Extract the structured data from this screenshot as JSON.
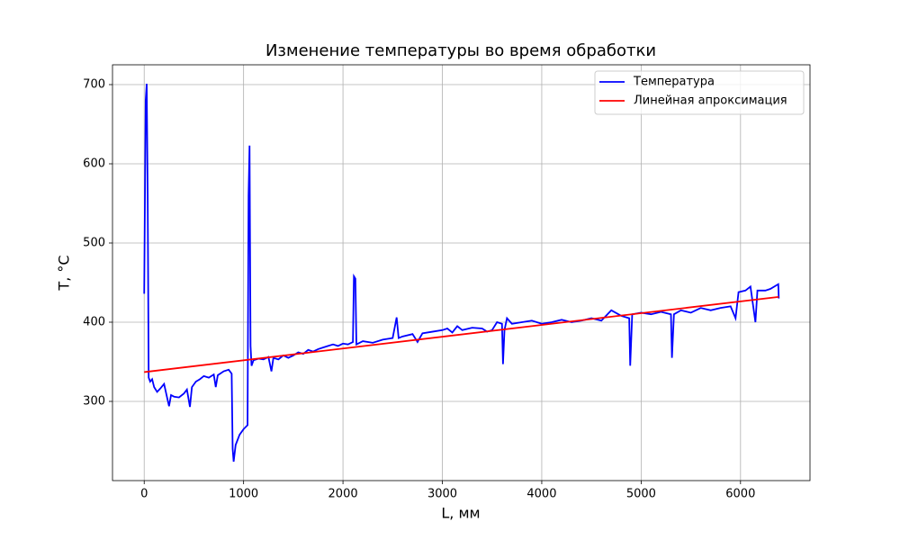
{
  "chart_data": {
    "type": "line",
    "title": "Изменение температуры во время обработки",
    "x_label": "L, мм",
    "y_label": "T, °C",
    "xlim": [
      -319,
      6699
    ],
    "ylim": [
      200,
      725
    ],
    "xticks": [
      0,
      1000,
      2000,
      3000,
      4000,
      5000,
      6000
    ],
    "yticks": [
      300,
      400,
      500,
      600,
      700
    ],
    "grid": true,
    "legend": "upper right",
    "series": [
      {
        "name": "Температура",
        "color": "#0000ff",
        "x": [
          0,
          15,
          25,
          35,
          45,
          60,
          80,
          100,
          130,
          160,
          200,
          230,
          250,
          270,
          300,
          350,
          400,
          430,
          460,
          480,
          520,
          560,
          600,
          650,
          700,
          720,
          740,
          800,
          850,
          880,
          890,
          900,
          920,
          960,
          1000,
          1040,
          1050,
          1060,
          1070,
          1080,
          1100,
          1150,
          1200,
          1250,
          1280,
          1300,
          1350,
          1400,
          1450,
          1500,
          1550,
          1600,
          1650,
          1700,
          1750,
          1800,
          1850,
          1900,
          1950,
          2000,
          2050,
          2100,
          2110,
          2125,
          2135,
          2200,
          2300,
          2400,
          2500,
          2540,
          2560,
          2600,
          2700,
          2750,
          2800,
          2900,
          3000,
          3050,
          3100,
          3150,
          3200,
          3300,
          3400,
          3450,
          3500,
          3550,
          3600,
          3610,
          3625,
          3650,
          3700,
          3800,
          3900,
          4000,
          4100,
          4200,
          4300,
          4400,
          4500,
          4600,
          4700,
          4800,
          4880,
          4890,
          4910,
          5000,
          5100,
          5200,
          5300,
          5310,
          5330,
          5400,
          5500,
          5600,
          5700,
          5800,
          5900,
          5950,
          5980,
          6050,
          6100,
          6150,
          6170,
          6250,
          6300,
          6380,
          6385
        ],
        "values": [
          436,
          680,
          701,
          560,
          330,
          325,
          328,
          318,
          312,
          316,
          322,
          305,
          294,
          308,
          306,
          305,
          310,
          315,
          293,
          318,
          325,
          328,
          332,
          330,
          334,
          318,
          333,
          338,
          340,
          335,
          240,
          224,
          245,
          258,
          265,
          270,
          560,
          623,
          370,
          345,
          352,
          354,
          353,
          356,
          338,
          355,
          353,
          358,
          355,
          358,
          362,
          360,
          365,
          363,
          366,
          368,
          370,
          372,
          370,
          373,
          372,
          375,
          458,
          455,
          372,
          376,
          374,
          378,
          380,
          406,
          380,
          382,
          385,
          375,
          386,
          388,
          390,
          392,
          387,
          395,
          390,
          393,
          392,
          388,
          390,
          400,
          398,
          347,
          390,
          405,
          398,
          400,
          402,
          398,
          400,
          403,
          400,
          402,
          405,
          402,
          415,
          408,
          405,
          345,
          410,
          412,
          410,
          413,
          410,
          355,
          410,
          415,
          412,
          418,
          415,
          418,
          420,
          405,
          438,
          440,
          445,
          400,
          440,
          440,
          442,
          448,
          430
        ]
      },
      {
        "name": "Линейная апроксимация",
        "color": "#ff0000",
        "x": [
          0,
          6385
        ],
        "values": [
          337,
          432
        ]
      }
    ]
  }
}
